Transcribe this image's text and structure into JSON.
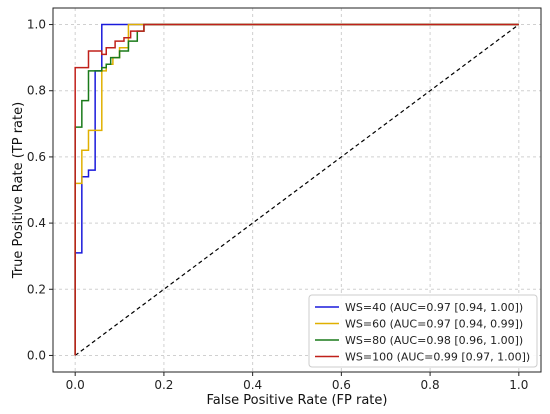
{
  "chart_data": {
    "type": "line",
    "title": "",
    "xlabel": "False Positive Rate (FP rate)",
    "ylabel": "True Positive Rate (TP rate)",
    "xlim": [
      -0.05,
      1.05
    ],
    "ylim": [
      -0.05,
      1.05
    ],
    "xticks": [
      0.0,
      0.2,
      0.4,
      0.6,
      0.8,
      1.0
    ],
    "yticks": [
      0.0,
      0.2,
      0.4,
      0.6,
      0.8,
      1.0
    ],
    "xtick_labels": [
      "0.0",
      "0.2",
      "0.4",
      "0.6",
      "0.8",
      "1.0"
    ],
    "ytick_labels": [
      "0.0",
      "0.2",
      "0.4",
      "0.6",
      "0.8",
      "1.0"
    ],
    "grid": true,
    "legend_position": "bottom-right",
    "diagonal": {
      "x": [
        0,
        1
      ],
      "y": [
        0,
        1
      ],
      "color": "#000000",
      "style": "dashed"
    },
    "series": [
      {
        "name": "WS=40 (AUC=0.97 [0.94, 1.00])",
        "color": "#1a1adb",
        "points": [
          [
            0,
            0
          ],
          [
            0,
            0.31
          ],
          [
            0.015,
            0.31
          ],
          [
            0.015,
            0.54
          ],
          [
            0.03,
            0.54
          ],
          [
            0.03,
            0.56
          ],
          [
            0.045,
            0.56
          ],
          [
            0.045,
            0.86
          ],
          [
            0.06,
            0.86
          ],
          [
            0.06,
            1.0
          ],
          [
            1.0,
            1.0
          ]
        ]
      },
      {
        "name": "WS=60 (AUC=0.97 [0.94, 0.99])",
        "color": "#e0b000",
        "points": [
          [
            0,
            0
          ],
          [
            0,
            0.52
          ],
          [
            0.015,
            0.52
          ],
          [
            0.015,
            0.62
          ],
          [
            0.03,
            0.62
          ],
          [
            0.03,
            0.68
          ],
          [
            0.045,
            0.68
          ],
          [
            0.045,
            0.68
          ],
          [
            0.06,
            0.68
          ],
          [
            0.06,
            0.86
          ],
          [
            0.07,
            0.86
          ],
          [
            0.07,
            0.88
          ],
          [
            0.085,
            0.88
          ],
          [
            0.085,
            0.9
          ],
          [
            0.1,
            0.9
          ],
          [
            0.1,
            0.93
          ],
          [
            0.12,
            0.93
          ],
          [
            0.12,
            1.0
          ],
          [
            1.0,
            1.0
          ]
        ]
      },
      {
        "name": "WS=80 (AUC=0.98 [0.96, 1.00])",
        "color": "#1a7a1a",
        "points": [
          [
            0,
            0
          ],
          [
            0,
            0.69
          ],
          [
            0.015,
            0.69
          ],
          [
            0.015,
            0.77
          ],
          [
            0.03,
            0.77
          ],
          [
            0.03,
            0.86
          ],
          [
            0.05,
            0.86
          ],
          [
            0.05,
            0.86
          ],
          [
            0.06,
            0.86
          ],
          [
            0.06,
            0.87
          ],
          [
            0.07,
            0.87
          ],
          [
            0.07,
            0.88
          ],
          [
            0.08,
            0.88
          ],
          [
            0.08,
            0.9
          ],
          [
            0.1,
            0.9
          ],
          [
            0.1,
            0.92
          ],
          [
            0.12,
            0.92
          ],
          [
            0.12,
            0.95
          ],
          [
            0.14,
            0.95
          ],
          [
            0.14,
            0.98
          ],
          [
            0.155,
            0.98
          ],
          [
            0.155,
            1.0
          ],
          [
            1.0,
            1.0
          ]
        ]
      },
      {
        "name": "WS=100 (AUC=0.99 [0.97, 1.00])",
        "color": "#c0201a",
        "points": [
          [
            0,
            0
          ],
          [
            0,
            0.87
          ],
          [
            0.03,
            0.87
          ],
          [
            0.03,
            0.92
          ],
          [
            0.06,
            0.92
          ],
          [
            0.06,
            0.91
          ],
          [
            0.07,
            0.91
          ],
          [
            0.07,
            0.93
          ],
          [
            0.09,
            0.93
          ],
          [
            0.09,
            0.95
          ],
          [
            0.11,
            0.95
          ],
          [
            0.11,
            0.96
          ],
          [
            0.125,
            0.96
          ],
          [
            0.125,
            0.98
          ],
          [
            0.155,
            0.98
          ],
          [
            0.155,
            1.0
          ],
          [
            1.0,
            1.0
          ]
        ]
      }
    ]
  }
}
